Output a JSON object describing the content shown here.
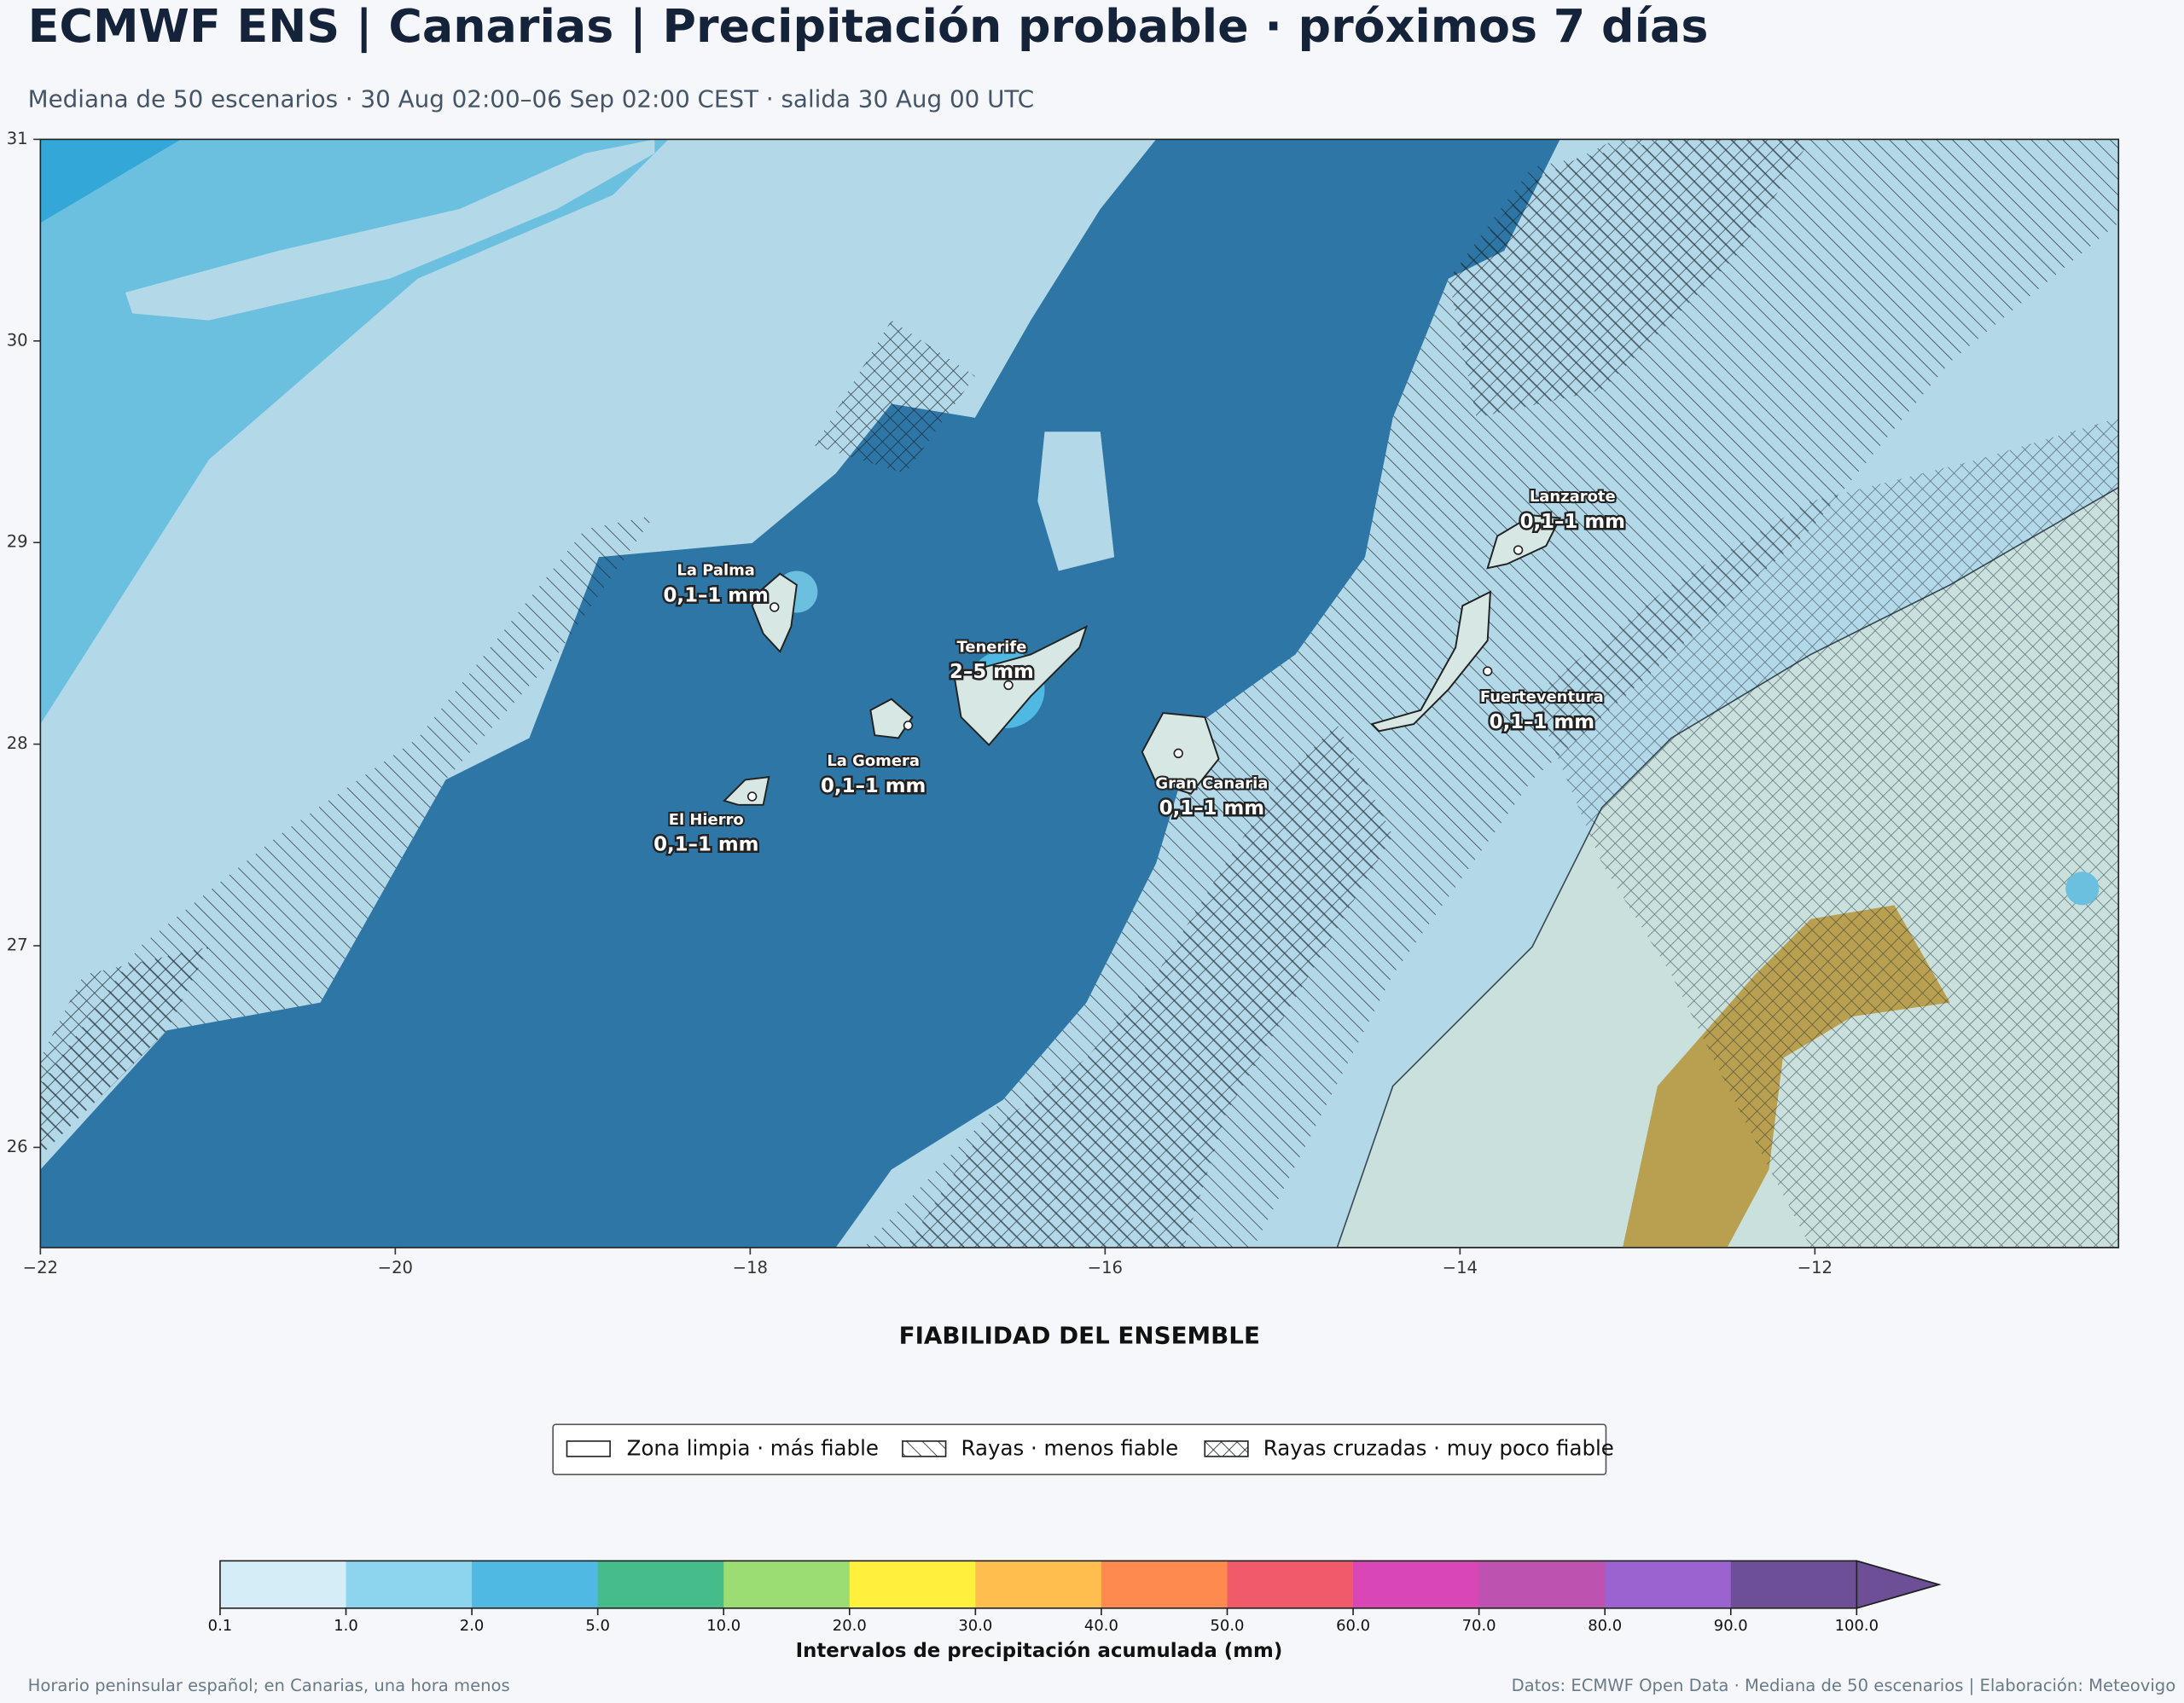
{
  "header": {
    "title": "ECMWF ENS | Canarias | Precipitación probable · próximos 7 días",
    "subtitle": "Mediana de 50 escenarios · 30 Aug 02:00–06 Sep 02:00 CEST · salida 30 Aug 00 UTC"
  },
  "map": {
    "xticks": [
      {
        "value": -22,
        "label": "−22"
      },
      {
        "value": -20,
        "label": "−20"
      },
      {
        "value": -18,
        "label": "−18"
      },
      {
        "value": -16,
        "label": "−16"
      },
      {
        "value": -14,
        "label": "−14"
      },
      {
        "value": -12,
        "label": "−12"
      }
    ],
    "yticks": [
      26,
      27,
      28,
      29,
      30,
      31
    ],
    "islands": [
      {
        "name": "La Palma",
        "amount": "0,1–1 mm"
      },
      {
        "name": "Tenerife",
        "amount": "2–5 mm"
      },
      {
        "name": "La Gomera",
        "amount": "0,1–1 mm"
      },
      {
        "name": "El Hierro",
        "amount": "0,1–1 mm"
      },
      {
        "name": "Gran Canaria",
        "amount": "0,1–1 mm"
      },
      {
        "name": "Lanzarote",
        "amount": "0,1–1 mm"
      },
      {
        "name": "Fuerteventura",
        "amount": "0,1–1 mm"
      }
    ]
  },
  "legend": {
    "title": "FIABILIDAD DEL ENSEMBLE",
    "items": [
      "Zona limpia · más fiable",
      "Rayas · menos fiable",
      "Rayas cruzadas · muy poco fiable"
    ]
  },
  "colorbar": {
    "label": "Intervalos de precipitación acumulada (mm)",
    "ticks": [
      "0.1",
      "1.0",
      "2.0",
      "5.0",
      "10.0",
      "20.0",
      "30.0",
      "40.0",
      "50.0",
      "60.0",
      "70.0",
      "80.0",
      "90.0",
      "100.0"
    ],
    "colors": [
      "#d4edf7",
      "#8dd4ef",
      "#4fb8e3",
      "#45bc8a",
      "#9bdc73",
      "#fef03c",
      "#ffbe4e",
      "#ff8a4f",
      "#f05a6a",
      "#d946b5",
      "#bd52b0",
      "#9a63cf",
      "#6c4f96"
    ]
  },
  "footer": {
    "left": "Horario peninsular español; en Canarias, una hora menos",
    "right": "Datos: ECMWF Open Data · Mediana de 50 escenarios | Elaboración: Meteovigo"
  }
}
